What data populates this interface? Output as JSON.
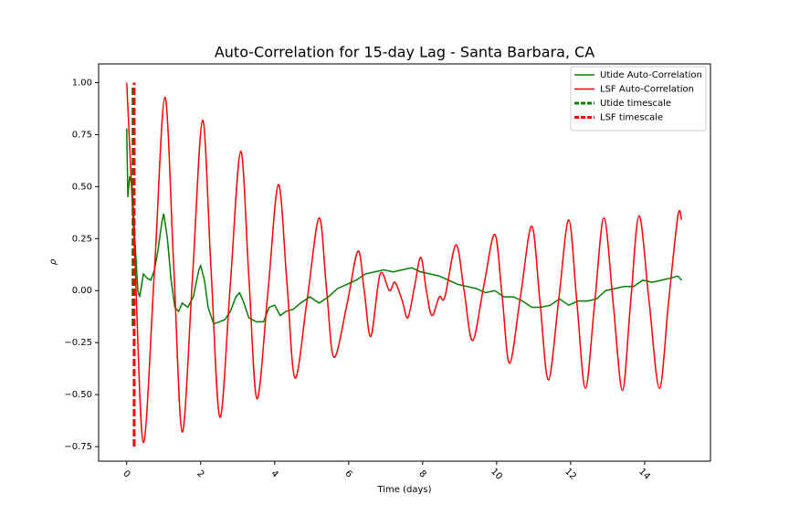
{
  "chart_data": {
    "type": "line",
    "title": "Auto-Correlation for 15-day Lag - Santa Barbara, CA",
    "xlabel": "Time (days)",
    "ylabel": "ρ",
    "xlim": [
      -0.76,
      15.78
    ],
    "ylim": [
      -0.82,
      1.09
    ],
    "xticks": [
      0,
      2,
      4,
      6,
      8,
      10,
      12,
      14
    ],
    "yticks": [
      {
        "value": -0.75,
        "label": "−0.75"
      },
      {
        "value": -0.5,
        "label": "−0.50"
      },
      {
        "value": -0.25,
        "label": "−0.25"
      },
      {
        "value": 0,
        "label": "0.00"
      },
      0.25,
      {
        "value": 0.5,
        "label": "0.50"
      },
      0.75,
      {
        "value": 1,
        "label": "1.00"
      }
    ],
    "legend": "upper right",
    "series": [
      {
        "name": "Utide Auto-Correlation",
        "color": "#008000",
        "width": 1.5,
        "x": [
          0,
          0.03,
          0.08,
          0.15,
          0.22,
          0.3,
          0.35,
          0.45,
          0.55,
          0.65,
          0.75,
          0.85,
          0.95,
          1.0,
          1.1,
          1.2,
          1.3,
          1.4,
          1.5,
          1.65,
          1.8,
          1.95,
          2.0,
          2.1,
          2.2,
          2.35,
          2.5,
          2.65,
          2.8,
          2.95,
          3.05,
          3.15,
          3.3,
          3.5,
          3.7,
          3.85,
          4.0,
          4.15,
          4.3,
          4.5,
          4.7,
          4.95,
          5.2,
          5.45,
          5.7,
          5.95,
          6.2,
          6.45,
          6.7,
          6.95,
          7.2,
          7.45,
          7.7,
          7.95,
          8.2,
          8.45,
          8.7,
          8.95,
          9.2,
          9.45,
          9.7,
          9.95,
          10.2,
          10.45,
          10.7,
          10.95,
          11.2,
          11.45,
          11.7,
          11.95,
          12.2,
          12.45,
          12.7,
          12.95,
          13.2,
          13.45,
          13.7,
          13.95,
          14.2,
          14.45,
          14.7,
          14.9,
          15.0
        ],
        "values": [
          0.78,
          0.45,
          0.55,
          0.5,
          0.25,
          0.0,
          -0.03,
          0.08,
          0.06,
          0.05,
          0.1,
          0.2,
          0.33,
          0.37,
          0.25,
          0.05,
          -0.08,
          -0.1,
          -0.06,
          -0.08,
          -0.03,
          0.1,
          0.12,
          0.05,
          -0.08,
          -0.16,
          -0.15,
          -0.14,
          -0.1,
          -0.03,
          -0.01,
          -0.05,
          -0.13,
          -0.15,
          -0.15,
          -0.08,
          -0.07,
          -0.12,
          -0.1,
          -0.09,
          -0.06,
          -0.03,
          -0.06,
          -0.03,
          0.01,
          0.03,
          0.05,
          0.08,
          0.09,
          0.1,
          0.09,
          0.1,
          0.11,
          0.09,
          0.08,
          0.07,
          0.05,
          0.03,
          0.02,
          0.01,
          -0.01,
          0.0,
          -0.03,
          -0.03,
          -0.05,
          -0.08,
          -0.08,
          -0.07,
          -0.04,
          -0.07,
          -0.05,
          -0.05,
          -0.04,
          0.0,
          0.01,
          0.02,
          0.02,
          0.05,
          0.04,
          0.05,
          0.06,
          0.07,
          0.05
        ]
      },
      {
        "name": "LSF Auto-Correlation",
        "color": "#ff0000",
        "width": 1.5,
        "smooth": true,
        "x": [
          0,
          0.22,
          0.45,
          0.75,
          1.03,
          1.27,
          1.5,
          1.78,
          2.05,
          2.28,
          2.52,
          2.8,
          3.08,
          3.3,
          3.52,
          3.82,
          4.1,
          4.33,
          4.55,
          4.88,
          5.2,
          5.4,
          5.6,
          5.95,
          6.25,
          6.42,
          6.6,
          6.85,
          7.1,
          7.25,
          7.45,
          7.6,
          7.78,
          7.95,
          8.1,
          8.25,
          8.45,
          8.6,
          8.9,
          9.12,
          9.35,
          9.65,
          9.95,
          10.15,
          10.35,
          10.65,
          10.95,
          11.17,
          11.4,
          11.68,
          11.95,
          12.17,
          12.4,
          12.65,
          12.9,
          13.15,
          13.4,
          13.62,
          13.85,
          14.12,
          14.4,
          14.65,
          14.9,
          15.0
        ],
        "values": [
          1.0,
          0.15,
          -0.73,
          0.1,
          0.93,
          0.12,
          -0.68,
          0.07,
          0.82,
          0.1,
          -0.61,
          0.03,
          0.67,
          0.07,
          -0.52,
          0.0,
          0.51,
          0.04,
          -0.42,
          -0.04,
          0.35,
          0.01,
          -0.32,
          -0.07,
          0.19,
          0.0,
          -0.22,
          0.08,
          0.0,
          0.04,
          -0.05,
          -0.13,
          0.02,
          0.16,
          0.0,
          -0.12,
          -0.03,
          -0.03,
          0.22,
          0.0,
          -0.24,
          0.02,
          0.27,
          -0.03,
          -0.35,
          -0.02,
          0.31,
          -0.05,
          -0.43,
          -0.04,
          0.34,
          -0.06,
          -0.47,
          -0.06,
          0.35,
          -0.06,
          -0.48,
          -0.06,
          0.36,
          -0.05,
          -0.47,
          -0.05,
          0.36,
          0.34
        ]
      },
      {
        "name": "Utide timescale",
        "color": "#008000",
        "width": 3,
        "dash": true,
        "x": [
          0.17,
          0.17
        ],
        "values": [
          -0.17,
          0.98
        ]
      },
      {
        "name": "LSF timescale",
        "color": "#ff0000",
        "width": 3,
        "dash": true,
        "x": [
          0.2,
          0.2
        ],
        "values": [
          -0.75,
          1.0
        ]
      }
    ]
  }
}
